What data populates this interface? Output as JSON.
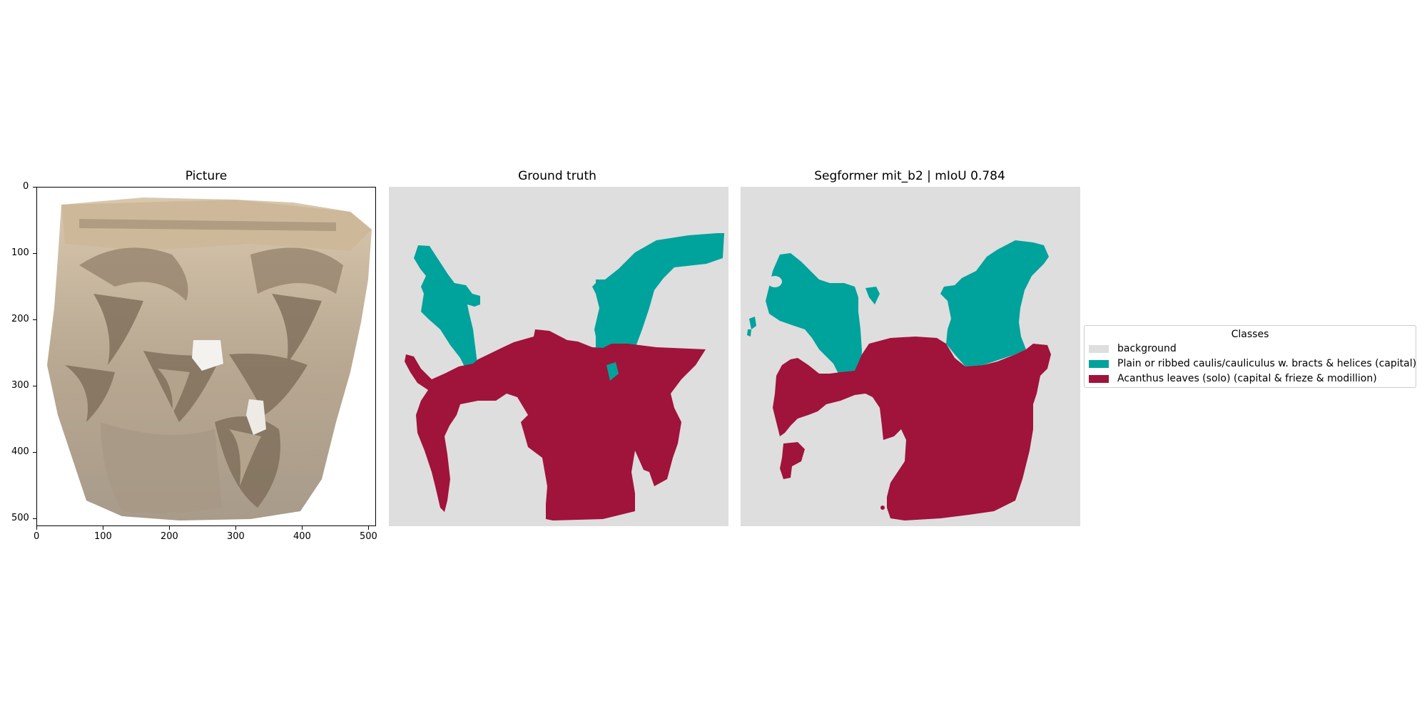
{
  "panels": {
    "picture": {
      "title": "Picture"
    },
    "ground_truth": {
      "title": "Ground truth"
    },
    "prediction": {
      "title": "Segformer mit_b2 | mIoU 0.784"
    }
  },
  "axes": {
    "x_ticks": [
      "0",
      "100",
      "200",
      "300",
      "400",
      "500"
    ],
    "y_ticks": [
      "0",
      "100",
      "200",
      "300",
      "400",
      "500"
    ]
  },
  "legend": {
    "title": "Classes",
    "items": [
      {
        "label": "background",
        "color": "#dedede"
      },
      {
        "label": "Plain or ribbed caulis/cauliculus w. bracts & helices (capital)",
        "color": "#00a29c"
      },
      {
        "label": "Acanthus leaves (solo) (capital & frieze & modillion)",
        "color": "#a0133a"
      }
    ]
  }
}
